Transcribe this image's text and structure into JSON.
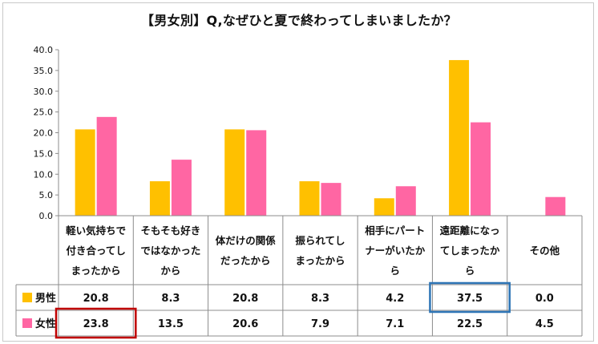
{
  "chart_data": {
    "type": "bar",
    "title": "【男女別】Q,なぜひと夏で終わってしまいましたか？",
    "categories": [
      [
        "軽い気持ちで",
        "付き合ってし",
        "まったから"
      ],
      [
        "そもそも好き",
        "ではなかった",
        "から"
      ],
      [
        "体だけの関係",
        "だったから"
      ],
      [
        "振られてし",
        "まったから"
      ],
      [
        "相手にパート",
        "ナーがいたか",
        "ら"
      ],
      [
        "遠距離になっ",
        "てしまったか",
        "ら"
      ],
      [
        "その他"
      ]
    ],
    "series": [
      {
        "name": "男性",
        "color": "#FFC000",
        "values": [
          20.8,
          8.3,
          20.8,
          8.3,
          4.2,
          37.5,
          0.0
        ]
      },
      {
        "name": "女性",
        "color": "#FF66A3",
        "values": [
          23.8,
          13.5,
          20.6,
          7.9,
          7.1,
          22.5,
          4.5
        ]
      }
    ],
    "ylim": [
      0,
      40
    ],
    "yticks": [
      "0.0",
      "5.0",
      "10.0",
      "15.0",
      "20.0",
      "25.0",
      "30.0",
      "35.0",
      "40.0"
    ],
    "grid": false,
    "legend": "data-table",
    "table": [
      [
        "20.8",
        "8.3",
        "20.8",
        "8.3",
        "4.2",
        "37.5",
        "0.0"
      ],
      [
        "23.8",
        "13.5",
        "20.6",
        "7.9",
        "7.1",
        "22.5",
        "4.5"
      ]
    ],
    "highlights": [
      {
        "series": 0,
        "category": 5,
        "color": "#2E75B6"
      },
      {
        "series": 1,
        "category": 0,
        "color": "#C00000"
      }
    ]
  }
}
